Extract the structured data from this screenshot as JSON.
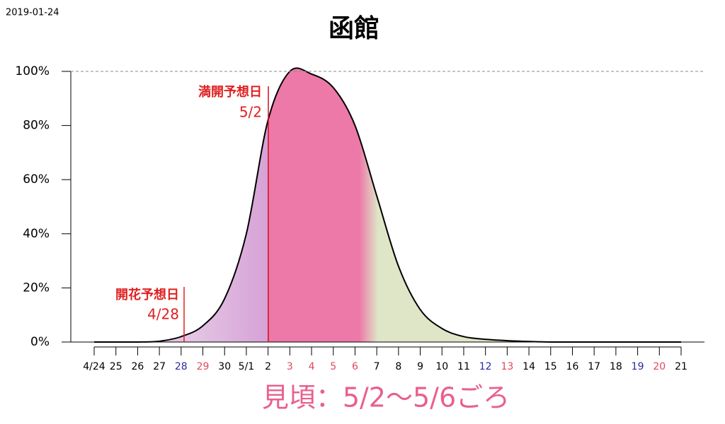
{
  "date_stamp": "2019-01-24",
  "chart_data": {
    "type": "area",
    "title": "函館",
    "categories": [
      "4/24",
      "25",
      "26",
      "27",
      "28",
      "29",
      "30",
      "5/1",
      "2",
      "3",
      "4",
      "5",
      "6",
      "7",
      "8",
      "9",
      "10",
      "11",
      "12",
      "13",
      "14",
      "15",
      "16",
      "17",
      "18",
      "19",
      "20",
      "21"
    ],
    "category_colors": [
      "#000000",
      "#000000",
      "#000000",
      "#000000",
      "#2a2aa8",
      "#e0485a",
      "#000000",
      "#000000",
      "#000000",
      "#e0485a",
      "#e0485a",
      "#e0485a",
      "#e0485a",
      "#000000",
      "#000000",
      "#000000",
      "#000000",
      "#000000",
      "#2a2aa8",
      "#e0485a",
      "#000000",
      "#000000",
      "#000000",
      "#000000",
      "#000000",
      "#2a2aa8",
      "#e0485a",
      "#000000"
    ],
    "series": [
      {
        "values": [
          0,
          0,
          0,
          0.3,
          2,
          6,
          16,
          40,
          82,
          100,
          99,
          94,
          80,
          54,
          28,
          12,
          5,
          2,
          1,
          0.5,
          0.2,
          0,
          0,
          0,
          0,
          0,
          0,
          0
        ],
        "color": "#000000"
      }
    ],
    "ylim": [
      0,
      100
    ],
    "yticks": [
      {
        "value": 0,
        "label": "0%"
      },
      {
        "value": 20,
        "label": "20%"
      },
      {
        "value": 40,
        "label": "40%"
      },
      {
        "value": 60,
        "label": "60%"
      },
      {
        "value": 80,
        "label": "80%"
      },
      {
        "value": 100,
        "label": "100%"
      }
    ],
    "annotations": [
      {
        "text": "開花予想日",
        "date": "4/28"
      },
      {
        "text": "満開予想日",
        "date": "5/2"
      }
    ],
    "footer": "見頃：5/2〜5/6ごろ"
  }
}
